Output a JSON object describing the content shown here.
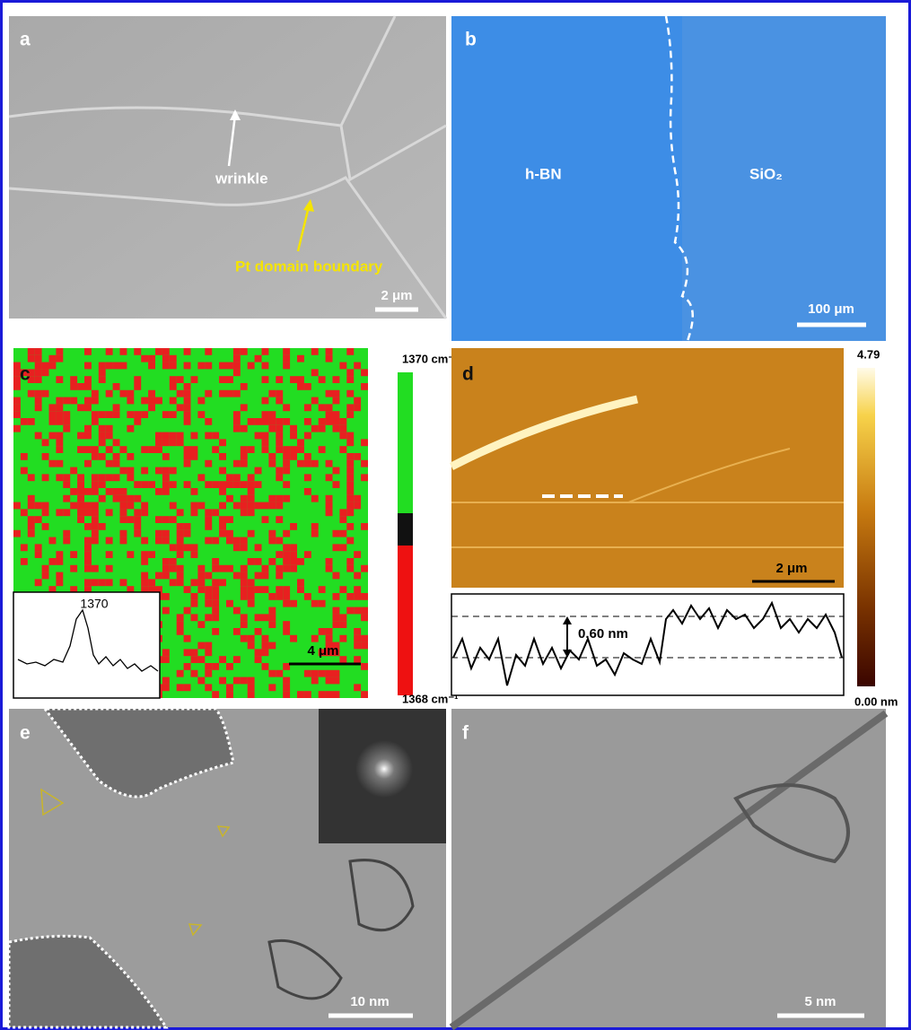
{
  "panels": [
    {
      "label": "a",
      "annotations": [
        "wrinkle",
        "Pt domain boundary"
      ],
      "scale_bar": "2 μm"
    },
    {
      "label": "b",
      "annotations": [
        "h-BN",
        "SiO₂"
      ],
      "scale_bar": "100 μm"
    },
    {
      "label": "c",
      "colorbar": [
        "1370 cm⁻¹",
        "1368 cm⁻¹"
      ],
      "inset_peak": "1370",
      "scale_bar": "4 μm"
    },
    {
      "label": "d",
      "colorbar": [
        "4.79",
        "0.00 nm"
      ],
      "profile_step": "0.60 nm",
      "scale_bar": "2 μm"
    },
    {
      "label": "e",
      "scale_bar": "10 nm"
    },
    {
      "label": "f",
      "scale_bar": "5 nm"
    }
  ]
}
